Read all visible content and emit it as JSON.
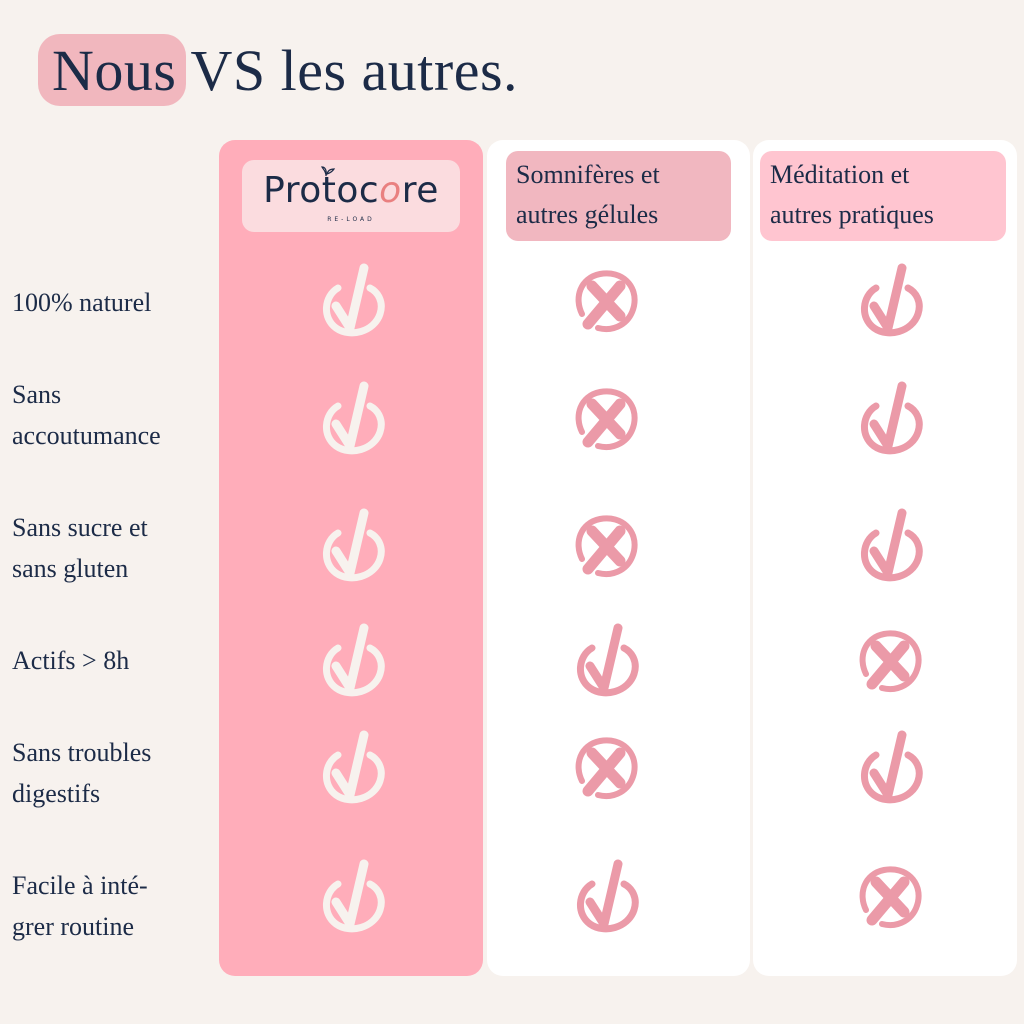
{
  "title": {
    "highlight": "Nous",
    "rest": "VS les autres."
  },
  "columns": [
    {
      "brand": "Protoc",
      "brand_o": "o",
      "brand_end": "re",
      "subtitle": "RE-LOAD"
    },
    {
      "header_line1": "Somnifères et",
      "header_line2": "autres gélules"
    },
    {
      "header_line1": "Méditation et",
      "header_line2": "autres pratiques"
    }
  ],
  "rows": [
    {
      "line1": "100% naturel",
      "line2": "",
      "values": [
        "check",
        "cross",
        "check"
      ]
    },
    {
      "line1": "Sans",
      "line2": "accoutumance",
      "values": [
        "check",
        "cross",
        "check"
      ]
    },
    {
      "line1": "Sans sucre et",
      "line2": "sans gluten",
      "values": [
        "check",
        "cross",
        "check"
      ]
    },
    {
      "line1": "Actifs > 8h",
      "line2": "",
      "values": [
        "check",
        "check",
        "cross"
      ]
    },
    {
      "line1": "Sans troubles",
      "line2": "digestifs",
      "values": [
        "check",
        "cross",
        "check"
      ]
    },
    {
      "line1": "Facile à inté-",
      "line2": "grer routine",
      "values": [
        "check",
        "check",
        "cross"
      ]
    }
  ],
  "colors": {
    "background": "#f7f2ee",
    "brand_column": "#ffadba",
    "icon_on_brand": "#f7f2ee",
    "icon_pink": "#eb9aa8",
    "text": "#1c2b47"
  }
}
